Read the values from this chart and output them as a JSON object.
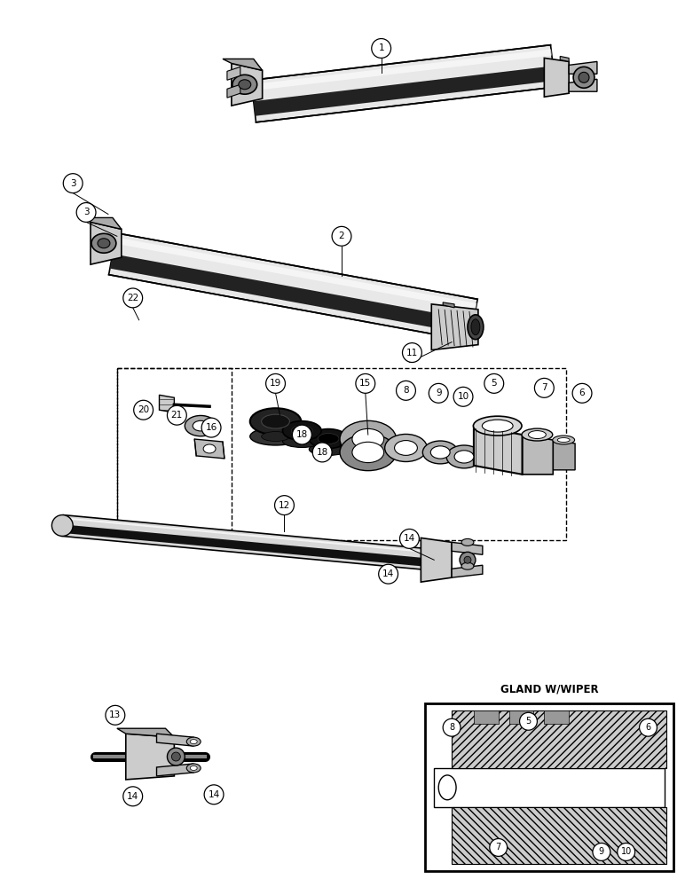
{
  "bg_color": "#ffffff",
  "figsize": [
    7.72,
    10.0
  ],
  "dpi": 100,
  "inset_label": "GLAND W/WIPER",
  "label_fontsize": 7.5,
  "circle_r": 0.016
}
